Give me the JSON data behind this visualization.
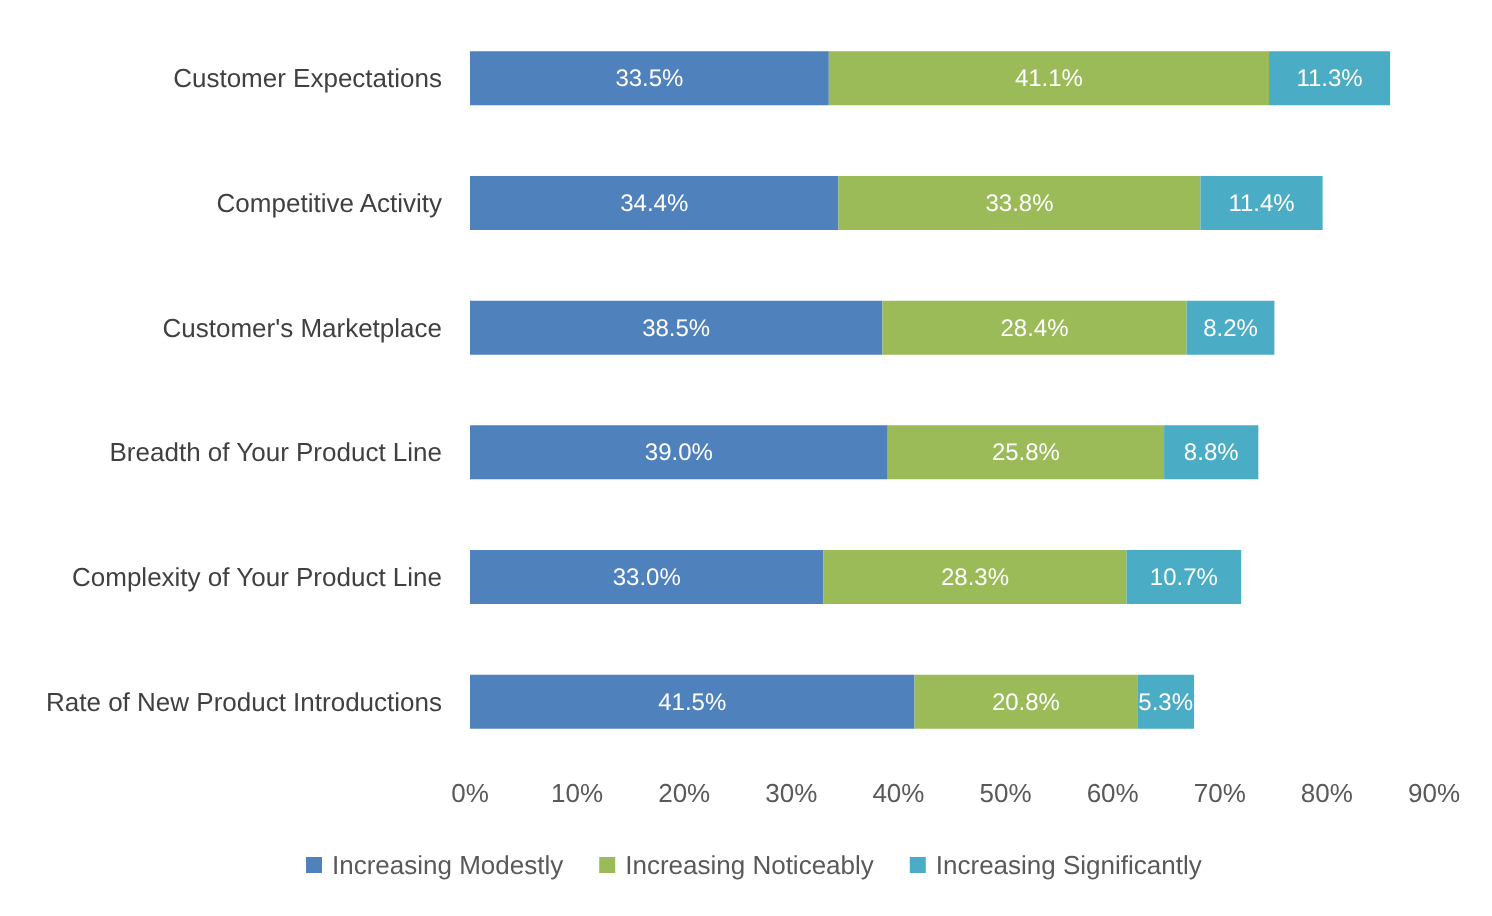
{
  "chart_data": {
    "type": "bar",
    "orientation": "horizontal",
    "stacked": true,
    "categories": [
      "Customer Expectations",
      "Competitive Activity",
      "Customer's Marketplace",
      "Breadth of Your Product Line",
      "Complexity of Your Product Line",
      "Rate of New Product Introductions"
    ],
    "series": [
      {
        "name": "Increasing Modestly",
        "color": "#4f81bd",
        "values": [
          33.5,
          34.4,
          38.5,
          39.0,
          33.0,
          41.5
        ],
        "value_labels": [
          "33.5%",
          "34.4%",
          "38.5%",
          "39.0%",
          "33.0%",
          "41.5%"
        ]
      },
      {
        "name": "Increasing Noticeably",
        "color": "#9bbb59",
        "values": [
          41.1,
          33.8,
          28.4,
          25.8,
          28.3,
          20.8
        ],
        "value_labels": [
          "41.1%",
          "33.8%",
          "28.4%",
          "25.8%",
          "28.3%",
          "20.8%"
        ]
      },
      {
        "name": "Increasing Significantly",
        "color": "#4bacc6",
        "values": [
          11.3,
          11.4,
          8.2,
          8.8,
          10.7,
          5.3
        ],
        "value_labels": [
          "11.3%",
          "11.4%",
          "8.2%",
          "8.8%",
          "10.7%",
          "5.3%"
        ]
      }
    ],
    "xlim": [
      0,
      90
    ],
    "xticks": [
      {
        "value": 0,
        "label": "0%"
      },
      {
        "value": 10,
        "label": "10%"
      },
      {
        "value": 20,
        "label": "20%"
      },
      {
        "value": 30,
        "label": "30%"
      },
      {
        "value": 40,
        "label": "40%"
      },
      {
        "value": 50,
        "label": "50%"
      },
      {
        "value": 60,
        "label": "60%"
      },
      {
        "value": 70,
        "label": "70%"
      },
      {
        "value": 80,
        "label": "80%"
      },
      {
        "value": 90,
        "label": "90%"
      }
    ],
    "grid": false,
    "legend": "bottom"
  }
}
